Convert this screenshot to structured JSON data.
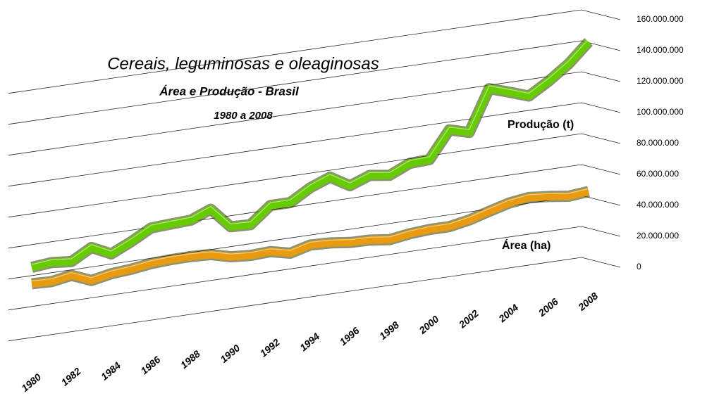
{
  "chart_data": {
    "type": "line3d",
    "title": "Cereais, leguminosas e oleaginosas",
    "subtitle": "Área e Produção - Brasil",
    "period": "1980 a 2008",
    "categories": [
      "1980",
      null,
      "1982",
      null,
      "1984",
      null,
      "1986",
      null,
      "1988",
      null,
      "1990",
      null,
      "1992",
      null,
      "1994",
      null,
      "1996",
      null,
      "1998",
      null,
      "2000",
      null,
      "2002",
      null,
      "2004",
      null,
      "2006",
      null,
      "2008"
    ],
    "series": [
      {
        "name": "Produção (t)",
        "color": "#66cc00",
        "values": [
          50800000,
          52000000,
          50800000,
          58000000,
          52000000,
          58000000,
          65000000,
          65700000,
          66300000,
          71500000,
          58300000,
          57800000,
          68300000,
          68300000,
          76000000,
          81000000,
          73600000,
          78400000,
          76600000,
          82400000,
          83000000,
          100300000,
          96800000,
          123200000,
          119100000,
          114700000,
          122500000,
          131800000,
          144100000
        ]
      },
      {
        "name": "Área (ha)",
        "color": "#e89a10",
        "values": [
          40200000,
          39700000,
          41900000,
          36700000,
          39200000,
          40200000,
          42000000,
          42700000,
          42800000,
          42200000,
          38900000,
          37900000,
          38500000,
          35600000,
          39000000,
          38500000,
          36900000,
          36600000,
          35000000,
          36900000,
          37800000,
          37800000,
          40200000,
          43900000,
          47400000,
          49100000,
          47900000,
          46200000,
          47400000
        ]
      }
    ],
    "ylim": [
      0,
      160000000
    ],
    "yticks": [
      {
        "value": 0,
        "label": "0"
      },
      {
        "value": 20000000,
        "label": "20.000.000"
      },
      {
        "value": 40000000,
        "label": "40.000.000"
      },
      {
        "value": 60000000,
        "label": "60.000.000"
      },
      {
        "value": 80000000,
        "label": "80.000.000"
      },
      {
        "value": 100000000,
        "label": "100.000.000"
      },
      {
        "value": 120000000,
        "label": "120.000.000"
      },
      {
        "value": 140000000,
        "label": "140.000.000"
      },
      {
        "value": 160000000,
        "label": "160.000.000"
      }
    ],
    "grid": true
  }
}
